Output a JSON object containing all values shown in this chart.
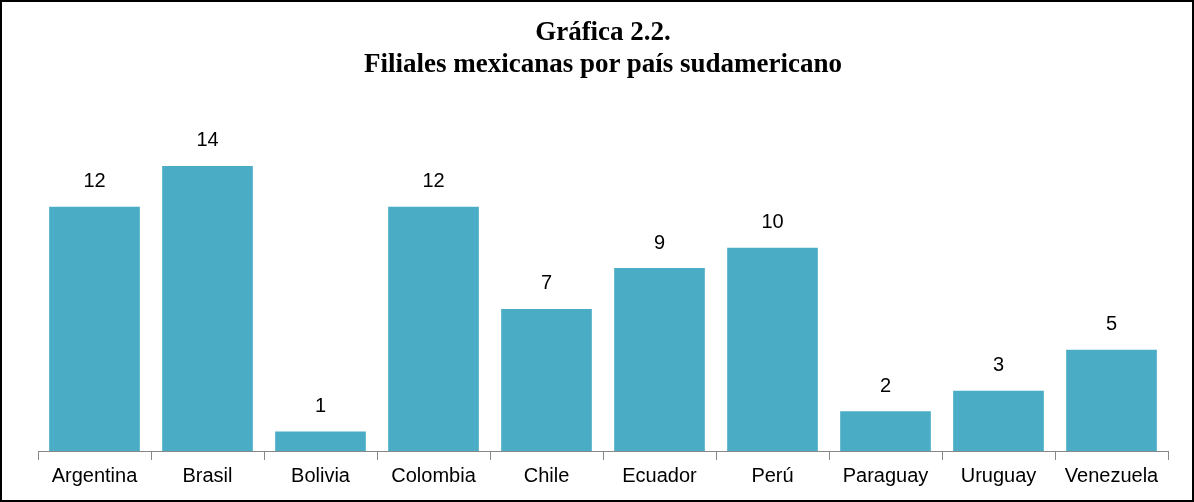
{
  "chart_data": {
    "type": "bar",
    "title": "Gráfica 2.2.\nFiliales mexicanas por país sudamericano",
    "categories": [
      "Argentina",
      "Brasil",
      "Bolivia",
      "Colombia",
      "Chile",
      "Ecuador",
      "Perú",
      "Paraguay",
      "Uruguay",
      "Venezuela"
    ],
    "values": [
      12,
      14,
      1,
      12,
      7,
      9,
      10,
      2,
      3,
      5
    ],
    "color": "#4bacc6",
    "data_labels": true,
    "grid": false,
    "legend": false
  }
}
